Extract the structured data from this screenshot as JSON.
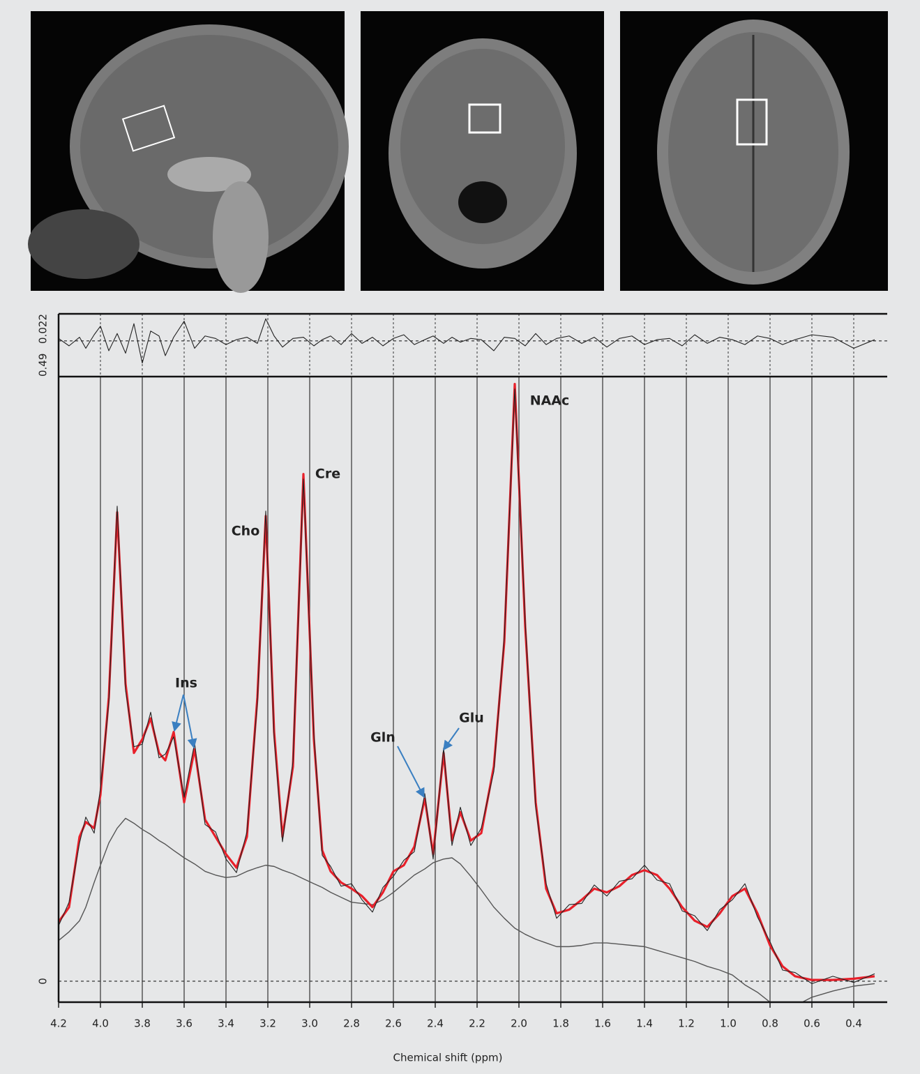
{
  "chart_data": {
    "type": "line",
    "x_label": "Chemical shift (ppm)",
    "x": [
      4.2,
      4.15,
      4.1,
      4.07,
      4.03,
      4.0,
      3.96,
      3.92,
      3.88,
      3.84,
      3.8,
      3.76,
      3.72,
      3.69,
      3.65,
      3.6,
      3.55,
      3.5,
      3.45,
      3.4,
      3.35,
      3.3,
      3.25,
      3.21,
      3.17,
      3.13,
      3.08,
      3.03,
      2.98,
      2.94,
      2.9,
      2.85,
      2.8,
      2.75,
      2.7,
      2.65,
      2.6,
      2.55,
      2.5,
      2.45,
      2.41,
      2.36,
      2.32,
      2.28,
      2.23,
      2.18,
      2.12,
      2.07,
      2.02,
      1.97,
      1.92,
      1.87,
      1.82,
      1.76,
      1.7,
      1.64,
      1.58,
      1.52,
      1.46,
      1.4,
      1.34,
      1.28,
      1.22,
      1.16,
      1.1,
      1.04,
      0.98,
      0.92,
      0.86,
      0.8,
      0.74,
      0.68,
      0.6,
      0.5,
      0.4,
      0.3
    ],
    "series": [
      {
        "name": "baseline",
        "color": "#555555",
        "values": [
          0.033,
          0.04,
          0.049,
          0.06,
          0.08,
          0.094,
          0.112,
          0.124,
          0.132,
          0.128,
          0.123,
          0.119,
          0.114,
          0.111,
          0.106,
          0.1,
          0.095,
          0.089,
          0.086,
          0.084,
          0.085,
          0.089,
          0.092,
          0.094,
          0.093,
          0.09,
          0.087,
          0.083,
          0.079,
          0.076,
          0.072,
          0.068,
          0.064,
          0.063,
          0.062,
          0.066,
          0.072,
          0.079,
          0.086,
          0.091,
          0.096,
          0.099,
          0.1,
          0.095,
          0.085,
          0.074,
          0.06,
          0.051,
          0.043,
          0.038,
          0.034,
          0.031,
          0.028,
          0.028,
          0.029,
          0.031,
          0.031,
          0.03,
          0.029,
          0.028,
          0.025,
          0.022,
          0.019,
          0.016,
          0.012,
          0.009,
          0.005,
          -0.003,
          -0.009,
          -0.017,
          -0.023,
          -0.02,
          -0.013,
          -0.008,
          -0.004,
          -0.002
        ]
      },
      {
        "name": "fit",
        "color": "#e8202a",
        "values": [
          0.048,
          0.06,
          0.117,
          0.129,
          0.124,
          0.151,
          0.23,
          0.38,
          0.241,
          0.185,
          0.196,
          0.213,
          0.185,
          0.179,
          0.202,
          0.145,
          0.188,
          0.131,
          0.117,
          0.103,
          0.092,
          0.117,
          0.23,
          0.377,
          0.202,
          0.117,
          0.174,
          0.411,
          0.196,
          0.106,
          0.089,
          0.08,
          0.075,
          0.069,
          0.06,
          0.072,
          0.089,
          0.094,
          0.109,
          0.148,
          0.103,
          0.185,
          0.114,
          0.137,
          0.114,
          0.12,
          0.174,
          0.275,
          0.484,
          0.287,
          0.145,
          0.075,
          0.055,
          0.058,
          0.066,
          0.075,
          0.072,
          0.077,
          0.086,
          0.09,
          0.086,
          0.075,
          0.06,
          0.049,
          0.044,
          0.055,
          0.069,
          0.075,
          0.055,
          0.029,
          0.012,
          0.004,
          0.001,
          0.001,
          0.002,
          0.004
        ]
      },
      {
        "name": "data",
        "color": "#222222",
        "values": [
          0.045,
          0.064,
          0.112,
          0.133,
          0.12,
          0.156,
          0.226,
          0.385,
          0.236,
          0.19,
          0.192,
          0.218,
          0.181,
          0.184,
          0.198,
          0.149,
          0.193,
          0.127,
          0.121,
          0.099,
          0.088,
          0.121,
          0.226,
          0.381,
          0.197,
          0.113,
          0.178,
          0.407,
          0.2,
          0.102,
          0.093,
          0.077,
          0.079,
          0.066,
          0.056,
          0.076,
          0.085,
          0.098,
          0.105,
          0.152,
          0.099,
          0.189,
          0.11,
          0.141,
          0.11,
          0.124,
          0.17,
          0.279,
          0.48,
          0.291,
          0.141,
          0.079,
          0.051,
          0.062,
          0.063,
          0.078,
          0.069,
          0.081,
          0.083,
          0.094,
          0.082,
          0.079,
          0.057,
          0.053,
          0.041,
          0.058,
          0.066,
          0.079,
          0.052,
          0.032,
          0.009,
          0.007,
          -0.002,
          0.004,
          -0.001,
          0.006
        ]
      },
      {
        "name": "residual",
        "color": "#222222",
        "axis": "y2",
        "values": [
          0.002,
          -0.004,
          0.003,
          -0.006,
          0.005,
          0.012,
          -0.008,
          0.006,
          -0.01,
          0.014,
          -0.018,
          0.008,
          0.004,
          -0.012,
          0.003,
          0.016,
          -0.006,
          0.004,
          0.002,
          -0.003,
          0.001,
          0.003,
          -0.002,
          0.018,
          0.004,
          -0.005,
          0.002,
          0.003,
          -0.004,
          0.001,
          0.004,
          -0.003,
          0.006,
          -0.002,
          0.003,
          -0.004,
          0.002,
          0.005,
          -0.003,
          0.001,
          0.004,
          -0.002,
          0.003,
          -0.001,
          0.002,
          0.001,
          -0.008,
          0.003,
          0.002,
          -0.004,
          0.006,
          -0.003,
          0.002,
          0.004,
          -0.002,
          0.003,
          -0.005,
          0.002,
          0.004,
          -0.003,
          0.001,
          0.002,
          -0.004,
          0.005,
          -0.002,
          0.003,
          0.001,
          -0.003,
          0.004,
          0.002,
          -0.003,
          0.001,
          0.005,
          0.003,
          -0.006,
          0.001
        ]
      }
    ],
    "xlim": [
      4.2,
      0.24
    ],
    "xticks": [
      4.2,
      {
        "value": 4,
        "label": "4.0"
      },
      3.8,
      3.6,
      3.4,
      3.2,
      {
        "value": 3,
        "label": "3.0"
      },
      2.8,
      2.6,
      2.4,
      2.2,
      {
        "value": 2,
        "label": "2.0"
      },
      1.8,
      1.6,
      1.4,
      1.2,
      {
        "value": 1,
        "label": "1.0"
      },
      0.8,
      0.6,
      0.4
    ],
    "ylim": [
      -0.017,
      0.49
    ],
    "yticks": [
      0,
      0.49
    ],
    "y2lim": [
      -0.029,
      0.022
    ],
    "y2ticks": [
      0.022
    ],
    "grid": true,
    "annotations": [
      "Cho",
      "Cre",
      "NAAc",
      "Ins",
      "Gln",
      "Glu"
    ]
  }
}
